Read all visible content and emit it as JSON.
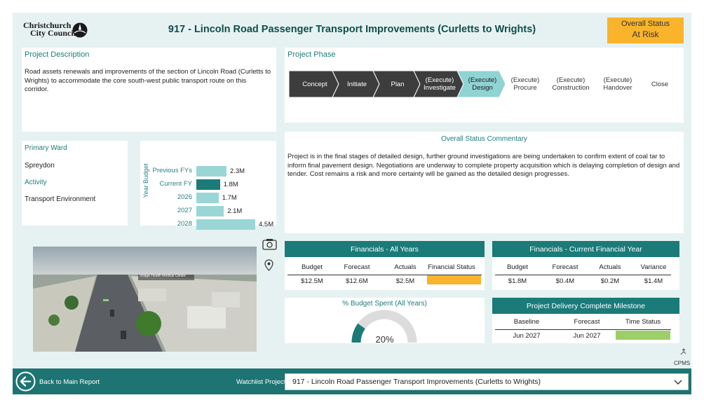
{
  "header": {
    "logo_line1": "Christchurch",
    "logo_line2": "City Council",
    "title": "917 - Lincoln Road Passenger Transport Improvements (Curletts to Wrights)",
    "status_label": "Overall Status",
    "status_value": "At Risk"
  },
  "description": {
    "title": "Project Description",
    "text": "Road assets renewals and improvements of the section of Lincoln Road (Curletts to Wrights) to accommodate the core south-west public transport route on this corridor."
  },
  "phase": {
    "title": "Project Phase",
    "steps": [
      {
        "label": "Concept",
        "state": "done"
      },
      {
        "label": "Initiate",
        "state": "done"
      },
      {
        "label": "Plan",
        "state": "done"
      },
      {
        "label": "(Execute)\nInvestigate",
        "state": "done"
      },
      {
        "label": "(Execute)\nDesign",
        "state": "current"
      },
      {
        "label": "(Execute)\nProcure",
        "state": "future"
      },
      {
        "label": "(Execute)\nConstruction",
        "state": "future"
      },
      {
        "label": "(Execute)\nHandover",
        "state": "future"
      },
      {
        "label": "Close",
        "state": "future"
      }
    ]
  },
  "ward": {
    "ward_label": "Primary Ward",
    "ward_value": "Spreydon",
    "activity_label": "Activity",
    "activity_value": "Transport Environment"
  },
  "budget_chart": {
    "axis_label": "Year Budget",
    "rows": [
      {
        "label": "Previous FYs",
        "value": 2.3,
        "text": "2.3M",
        "highlight": false
      },
      {
        "label": "Current FY",
        "value": 1.8,
        "text": "1.8M",
        "highlight": true
      },
      {
        "label": "2026",
        "value": 1.7,
        "text": "1.7M",
        "highlight": false
      },
      {
        "label": "2027",
        "value": 2.1,
        "text": "2.1M",
        "highlight": false
      },
      {
        "label": "2028",
        "value": 4.5,
        "text": "4.5M",
        "highlight": false
      }
    ]
  },
  "commentary": {
    "title": "Overall Status Commentary",
    "text": "Project is in the final stages of detailed design, further ground investigations are being undertaken to confirm extent of coal tar to inform final pavement design. Negotiations are underway to complete property acquisition which is delaying completion of design and tender. Cost remains a risk and more certainty will be gained as the detailed design progresses."
  },
  "render": {
    "overlay_label": "Village Health Medical Centre"
  },
  "fin_all": {
    "title": "Financials - All Years",
    "headers": [
      "Budget",
      "Forecast",
      "Actuals",
      "Financial Status"
    ],
    "values": [
      "$12.5M",
      "$12.6M",
      "$2.5M",
      ""
    ],
    "status_color": "#f9b42b"
  },
  "fin_current": {
    "title": "Financials - Current Financial Year",
    "headers": [
      "Budget",
      "Forecast",
      "Actuals",
      "Variance"
    ],
    "values": [
      "$1.8M",
      "$0.4M",
      "$0.2M",
      "$1.4M"
    ]
  },
  "budget_spent": {
    "title": "% Budget Spent (All Years)",
    "value_text": "20%",
    "fraction": 0.2
  },
  "milestone": {
    "title": "Project Delivery Complete Milestone",
    "headers": [
      "Baseline",
      "Forecast",
      "Time Status"
    ],
    "values": [
      "Jun 2027",
      "Jun 2027",
      ""
    ],
    "status_color": "#9ccf67"
  },
  "footer": {
    "cpms_label": "CPMS",
    "back_label": "Back to Main Report",
    "watchlist_label": "Watchlist Project:",
    "selected_project": "917 - Lincoln Road Passenger Transport Improvements (Curletts to Wrights)"
  },
  "colors": {
    "accent": "#1b7b79",
    "status_amber": "#f9b42b",
    "phase_done": "#3d3d3d",
    "phase_current": "#8fd3d3"
  }
}
